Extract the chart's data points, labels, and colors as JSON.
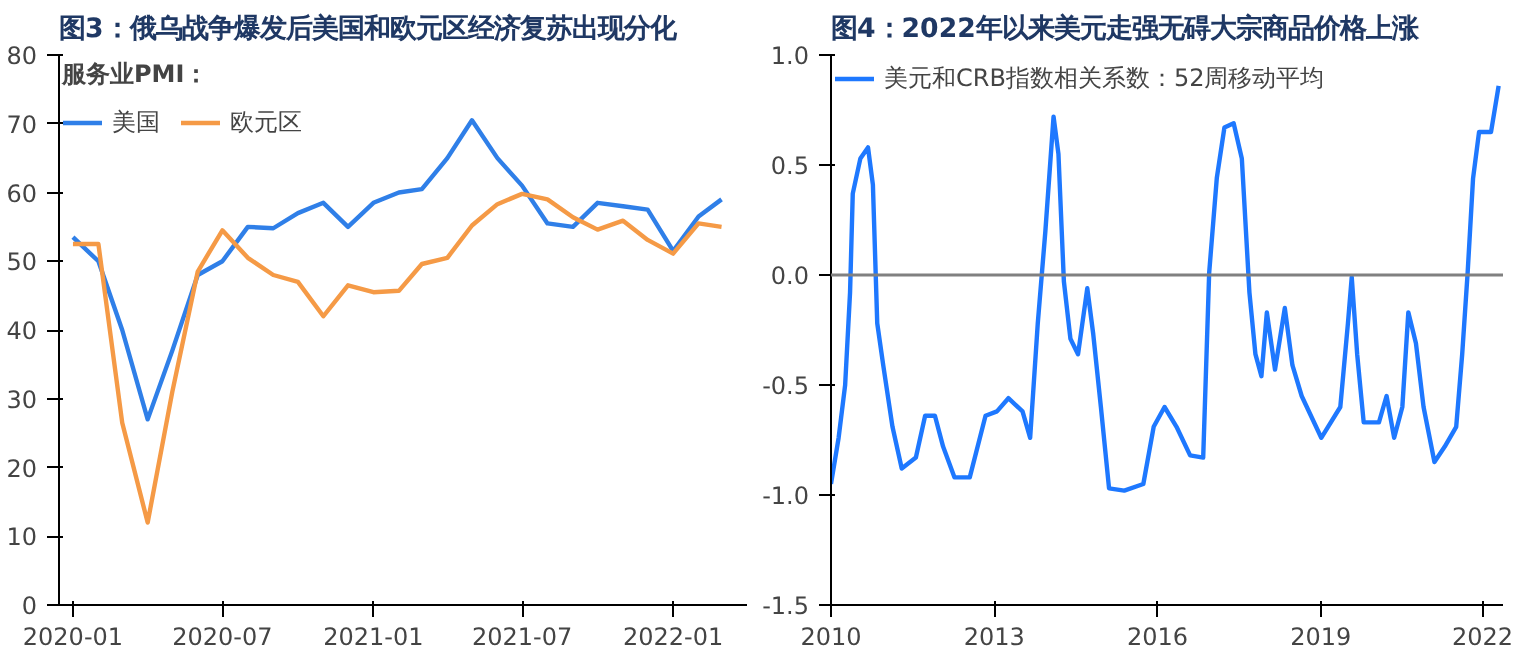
{
  "chart_data": [
    {
      "type": "line",
      "title": "图3：俄乌战争爆发后美国和欧元区经济复苏出现分化",
      "legend_title": "服务业PMI：",
      "legend": "top",
      "grid": false,
      "x": [
        "2020-01",
        "2020-02",
        "2020-03",
        "2020-04",
        "2020-05",
        "2020-06",
        "2020-07",
        "2020-08",
        "2020-09",
        "2020-10",
        "2020-11",
        "2020-12",
        "2021-01",
        "2021-02",
        "2021-03",
        "2021-04",
        "2021-05",
        "2021-06",
        "2021-07",
        "2021-08",
        "2021-09",
        "2021-10",
        "2021-11",
        "2021-12",
        "2022-01",
        "2022-02",
        "2022-03"
      ],
      "xlim": [
        "2019-12-15",
        "2022-04-01"
      ],
      "xticks": [
        "2020-01",
        "2020-07",
        "2021-01",
        "2021-07",
        "2022-01"
      ],
      "ylim": [
        0,
        80
      ],
      "yticks": [
        0,
        10,
        20,
        30,
        40,
        50,
        60,
        70,
        80
      ],
      "series": [
        {
          "name": "美国",
          "color": "#2f7fe8",
          "values": [
            53.5,
            50,
            40,
            27,
            37,
            48,
            50,
            55,
            54.8,
            57,
            58.5,
            55,
            58.5,
            60,
            60.5,
            65,
            70.5,
            65,
            61,
            55.5,
            55,
            58.5,
            58,
            57.5,
            51.5,
            56.5,
            59
          ]
        },
        {
          "name": "欧元区",
          "color": "#f59a46",
          "values": [
            52.5,
            52.5,
            26.5,
            12,
            31,
            48.5,
            54.5,
            50.5,
            48,
            47,
            42,
            46.5,
            45.5,
            45.7,
            49.6,
            50.5,
            55.2,
            58.3,
            59.8,
            59,
            56.4,
            54.6,
            55.9,
            53.1,
            51.1,
            55.5,
            55
          ]
        }
      ]
    },
    {
      "type": "line",
      "title": "图4：2022年以来美元走强无碍大宗商品价格上涨",
      "legend": "top",
      "grid": false,
      "xlim": [
        2010,
        2022.35
      ],
      "xticks": [
        2010,
        2013,
        2016,
        2019,
        2022
      ],
      "ylim": [
        -1.5,
        1.0
      ],
      "yticks": [
        {
          "value": -1.5,
          "label": "-1.5"
        },
        {
          "value": -1.0,
          "label": "-1.0"
        },
        {
          "value": -0.5,
          "label": "-0.5"
        },
        {
          "value": 0,
          "label": "0.0"
        },
        {
          "value": 0.5,
          "label": "0.5"
        },
        {
          "value": 1.0,
          "label": "1.0"
        }
      ],
      "ref_lines": [
        {
          "axis": "y",
          "value": 0,
          "color": "#808080"
        }
      ],
      "series": [
        {
          "name": "美元和CRB指数相关系数：52周移动平均",
          "color": "#1e78ff",
          "x": [
            2010.0,
            2010.14,
            2010.26,
            2010.35,
            2010.4,
            2010.54,
            2010.68,
            2010.77,
            2010.85,
            2010.96,
            2011.13,
            2011.3,
            2011.56,
            2011.73,
            2011.91,
            2012.06,
            2012.27,
            2012.55,
            2012.84,
            2013.05,
            2013.26,
            2013.52,
            2013.66,
            2013.8,
            2013.94,
            2014.09,
            2014.18,
            2014.28,
            2014.4,
            2014.54,
            2014.71,
            2014.82,
            2014.96,
            2015.11,
            2015.39,
            2015.74,
            2015.93,
            2016.13,
            2016.35,
            2016.6,
            2016.84,
            2016.95,
            2017.09,
            2017.23,
            2017.4,
            2017.55,
            2017.69,
            2017.8,
            2017.91,
            2018.01,
            2018.16,
            2018.34,
            2018.48,
            2018.65,
            2019.01,
            2019.36,
            2019.5,
            2019.57,
            2019.67,
            2019.79,
            2020.07,
            2020.21,
            2020.35,
            2020.5,
            2020.61,
            2020.75,
            2020.89,
            2021.09,
            2021.28,
            2021.49,
            2021.6,
            2021.7,
            2021.8,
            2021.91,
            2022.13,
            2022.27
          ],
          "values": [
            -0.95,
            -0.74,
            -0.5,
            -0.08,
            0.37,
            0.53,
            0.58,
            0.41,
            -0.22,
            -0.41,
            -0.69,
            -0.88,
            -0.83,
            -0.64,
            -0.64,
            -0.78,
            -0.92,
            -0.92,
            -0.64,
            -0.62,
            -0.56,
            -0.62,
            -0.74,
            -0.22,
            0.2,
            0.72,
            0.55,
            -0.03,
            -0.29,
            -0.36,
            -0.06,
            -0.27,
            -0.6,
            -0.97,
            -0.98,
            -0.95,
            -0.69,
            -0.6,
            -0.69,
            -0.82,
            -0.83,
            0.01,
            0.44,
            0.67,
            0.69,
            0.53,
            -0.08,
            -0.36,
            -0.46,
            -0.17,
            -0.43,
            -0.15,
            -0.41,
            -0.55,
            -0.74,
            -0.6,
            -0.22,
            -0.01,
            -0.36,
            -0.67,
            -0.67,
            -0.55,
            -0.74,
            -0.6,
            -0.17,
            -0.31,
            -0.6,
            -0.85,
            -0.78,
            -0.69,
            -0.36,
            0.01,
            0.44,
            0.65,
            0.65,
            0.86
          ]
        }
      ]
    }
  ]
}
